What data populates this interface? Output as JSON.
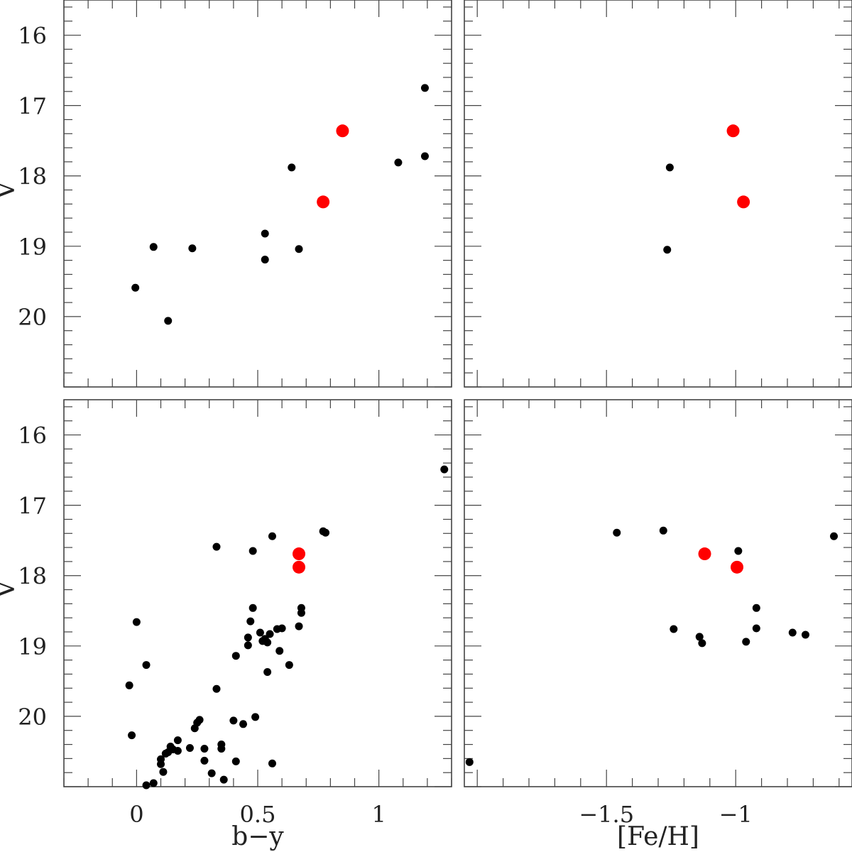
{
  "chart_data": [
    {
      "type": "scatter",
      "panel": "top-left",
      "xlabel": "",
      "ylabel": "V",
      "xlim": [
        -0.3,
        1.3
      ],
      "ylim": [
        21,
        15.5
      ],
      "x_ticks": [
        0,
        0.5,
        1
      ],
      "y_ticks": [
        16,
        17,
        18,
        19,
        20
      ],
      "series": [
        {
          "color": "#000000",
          "points": [
            [
              1.19,
              16.75
            ],
            [
              1.19,
              17.72
            ],
            [
              1.08,
              17.81
            ],
            [
              0.64,
              17.88
            ],
            [
              0.53,
              18.82
            ],
            [
              0.67,
              19.04
            ],
            [
              0.53,
              19.19
            ],
            [
              0.07,
              19.01
            ],
            [
              0.23,
              19.03
            ],
            [
              -0.005,
              19.59
            ],
            [
              0.13,
              20.06
            ]
          ]
        },
        {
          "color": "#ff0000",
          "points": [
            [
              0.85,
              17.36
            ],
            [
              0.77,
              18.37
            ]
          ]
        }
      ]
    },
    {
      "type": "scatter",
      "panel": "top-right",
      "xlabel": "",
      "ylabel": "",
      "xlim": [
        -2.05,
        -0.55
      ],
      "ylim": [
        21,
        15.5
      ],
      "x_ticks": [
        -1.5,
        -1
      ],
      "y_ticks": [
        16,
        17,
        18,
        19,
        20
      ],
      "series": [
        {
          "color": "#000000",
          "points": [
            [
              -1.255,
              17.88
            ],
            [
              -1.265,
              19.05
            ]
          ]
        },
        {
          "color": "#ff0000",
          "points": [
            [
              -1.01,
              17.36
            ],
            [
              -0.97,
              18.37
            ]
          ]
        }
      ]
    },
    {
      "type": "scatter",
      "panel": "bottom-left",
      "xlabel": "b−y",
      "ylabel": "V",
      "xlim": [
        -0.3,
        1.3
      ],
      "ylim": [
        21,
        15.5
      ],
      "x_ticks": [
        0,
        0.5,
        1
      ],
      "x_tick_labels": [
        "0",
        "0.5",
        "1"
      ],
      "y_ticks": [
        16,
        17,
        18,
        19,
        20
      ],
      "series": [
        {
          "color": "#000000",
          "points": [
            [
              1.27,
              16.49
            ],
            [
              0.77,
              17.37
            ],
            [
              0.78,
              17.39
            ],
            [
              0.56,
              17.44
            ],
            [
              0.33,
              17.59
            ],
            [
              0.48,
              17.65
            ],
            [
              0.68,
              18.46
            ],
            [
              0.68,
              18.53
            ],
            [
              0.48,
              18.46
            ],
            [
              0.47,
              18.65
            ],
            [
              0.67,
              18.72
            ],
            [
              0.6,
              18.75
            ],
            [
              0.58,
              18.76
            ],
            [
              0.51,
              18.81
            ],
            [
              0.55,
              18.83
            ],
            [
              0.46,
              18.88
            ],
            [
              0.53,
              18.9
            ],
            [
              0.52,
              18.93
            ],
            [
              0.54,
              18.95
            ],
            [
              0.46,
              18.99
            ],
            [
              0.59,
              19.07
            ],
            [
              0.41,
              19.14
            ],
            [
              0.63,
              19.27
            ],
            [
              0.54,
              19.37
            ],
            [
              0.0,
              18.66
            ],
            [
              0.04,
              19.27
            ],
            [
              -0.03,
              19.56
            ],
            [
              0.33,
              19.61
            ],
            [
              -0.02,
              20.27
            ],
            [
              0.49,
              20.01
            ],
            [
              0.4,
              20.06
            ],
            [
              0.44,
              20.11
            ],
            [
              0.26,
              20.05
            ],
            [
              0.25,
              20.09
            ],
            [
              0.24,
              20.17
            ],
            [
              0.17,
              20.34
            ],
            [
              0.22,
              20.45
            ],
            [
              0.14,
              20.43
            ],
            [
              0.15,
              20.47
            ],
            [
              0.13,
              20.51
            ],
            [
              0.17,
              20.49
            ],
            [
              0.12,
              20.53
            ],
            [
              0.28,
              20.46
            ],
            [
              0.35,
              20.4
            ],
            [
              0.35,
              20.46
            ],
            [
              0.1,
              20.61
            ],
            [
              0.1,
              20.68
            ],
            [
              0.28,
              20.63
            ],
            [
              0.41,
              20.64
            ],
            [
              0.56,
              20.67
            ],
            [
              0.11,
              20.79
            ],
            [
              0.31,
              20.81
            ],
            [
              0.36,
              20.9
            ],
            [
              0.07,
              20.95
            ],
            [
              0.04,
              20.98
            ]
          ]
        },
        {
          "color": "#ff0000",
          "points": [
            [
              0.67,
              17.69
            ],
            [
              0.67,
              17.88
            ]
          ]
        }
      ]
    },
    {
      "type": "scatter",
      "panel": "bottom-right",
      "xlabel": "[Fe/H]",
      "ylabel": "",
      "xlim": [
        -2.05,
        -0.55
      ],
      "ylim": [
        21,
        15.5
      ],
      "x_ticks": [
        -1.5,
        -1
      ],
      "x_tick_labels": [
        "−1.5",
        "−1"
      ],
      "y_ticks": [
        16,
        17,
        18,
        19,
        20
      ],
      "series": [
        {
          "color": "#000000",
          "points": [
            [
              -1.46,
              17.39
            ],
            [
              -1.28,
              17.36
            ],
            [
              -0.99,
              17.65
            ],
            [
              -0.62,
              17.44
            ],
            [
              -0.92,
              18.46
            ],
            [
              -0.92,
              18.75
            ],
            [
              -0.78,
              18.81
            ],
            [
              -0.73,
              18.84
            ],
            [
              -1.24,
              18.76
            ],
            [
              -1.14,
              18.87
            ],
            [
              -1.13,
              18.96
            ],
            [
              -0.96,
              18.94
            ],
            [
              -2.03,
              20.65
            ]
          ]
        },
        {
          "color": "#ff0000",
          "points": [
            [
              -1.12,
              17.69
            ],
            [
              -0.995,
              17.88
            ]
          ]
        }
      ]
    }
  ],
  "y_tick_labels": [
    "16",
    "17",
    "18",
    "19",
    "20"
  ]
}
